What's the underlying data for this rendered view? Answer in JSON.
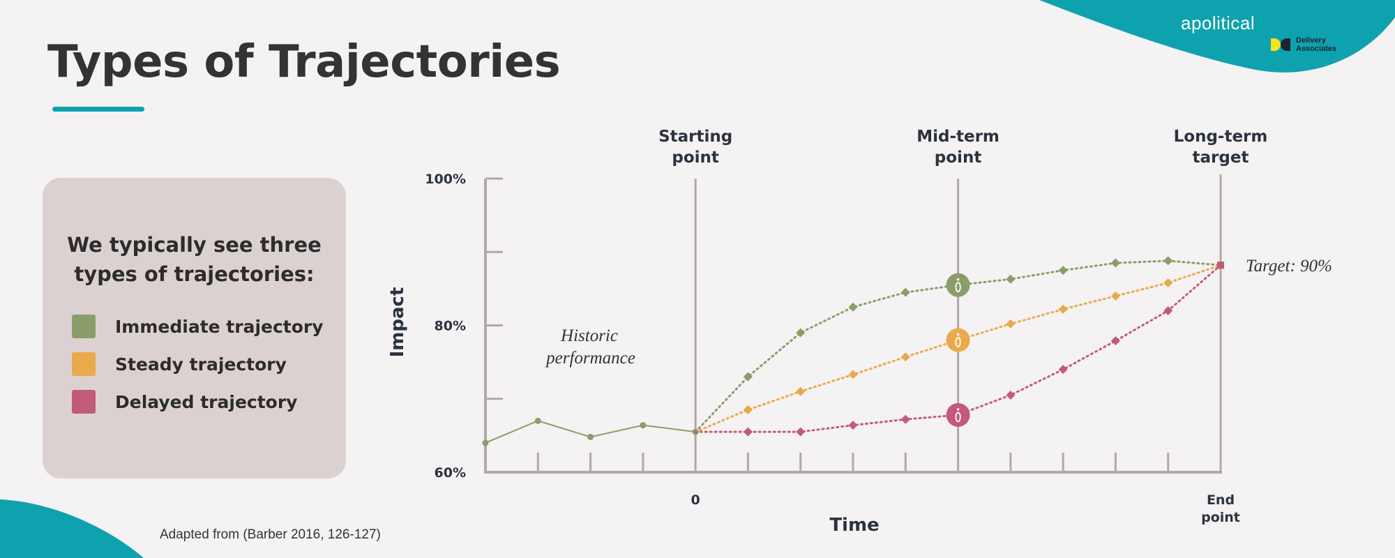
{
  "header": {
    "title": "Types of Trajectories",
    "brand": "apolitical",
    "partner_logo_lines": [
      "Delivery",
      "Associates"
    ],
    "accent_color": "#0ea2ae"
  },
  "panel": {
    "heading_lines": [
      "We typically see three",
      "types of trajectories:"
    ],
    "legend": [
      {
        "label": "Immediate trajectory",
        "color": "#8a9d6a"
      },
      {
        "label": "Steady trajectory",
        "color": "#e8aa4a"
      },
      {
        "label": "Delayed trajectory",
        "color": "#c25a7a"
      }
    ]
  },
  "source_note": "Adapted from (Barber 2016, 126-127)",
  "chart_data": {
    "type": "line",
    "ylabel": "Impact",
    "xlabel": "Time",
    "y_tick_labels": [
      "100%",
      "80%",
      "60%"
    ],
    "ylim": [
      60,
      100
    ],
    "xlim": [
      -4,
      10
    ],
    "x_tick_labels": [
      {
        "x": 0,
        "lines": [
          "0"
        ]
      },
      {
        "x": 10,
        "lines": [
          "End",
          "point"
        ]
      }
    ],
    "milestones": [
      {
        "x": 0,
        "lines": [
          "Starting",
          "point"
        ]
      },
      {
        "x": 5,
        "lines": [
          "Mid-term",
          "point"
        ]
      },
      {
        "x": 10,
        "lines": [
          "Long-term",
          "target"
        ]
      }
    ],
    "annotations": {
      "historic": [
        "Historic",
        "performance"
      ],
      "target": "Target: 90%"
    },
    "milestone_marker_glyph": "0",
    "historic_series": {
      "color": "#8a9d6a",
      "x": [
        -4,
        -3,
        -2,
        -1,
        0
      ],
      "y": [
        64.0,
        67.0,
        64.8,
        66.4,
        65.5
      ]
    },
    "series": [
      {
        "name": "Immediate trajectory",
        "color": "#8a9d6a",
        "x": [
          0,
          1,
          2,
          3,
          4,
          5,
          6,
          7,
          8,
          9,
          10
        ],
        "y": [
          65.5,
          73.0,
          79.0,
          82.5,
          84.5,
          85.5,
          86.3,
          87.5,
          88.5,
          88.8,
          88.2
        ]
      },
      {
        "name": "Steady trajectory",
        "color": "#e8aa4a",
        "x": [
          0,
          1,
          2,
          3,
          4,
          5,
          6,
          7,
          8,
          9,
          10
        ],
        "y": [
          65.5,
          68.5,
          71.0,
          73.3,
          75.7,
          78.0,
          80.2,
          82.2,
          84.0,
          85.8,
          88.2
        ]
      },
      {
        "name": "Delayed trajectory",
        "color": "#c25a7a",
        "x": [
          0,
          1,
          2,
          3,
          4,
          5,
          6,
          7,
          8,
          9,
          10
        ],
        "y": [
          65.5,
          65.5,
          65.5,
          66.4,
          67.2,
          67.8,
          70.5,
          74.0,
          77.9,
          82.0,
          88.2
        ]
      }
    ],
    "grid": false,
    "legend_position": "left panel"
  }
}
